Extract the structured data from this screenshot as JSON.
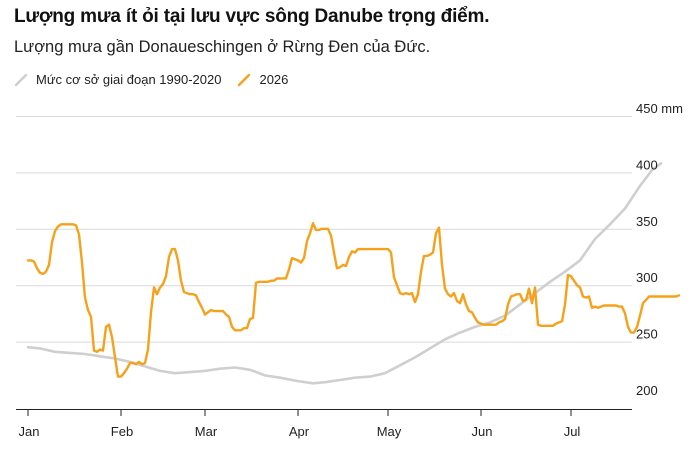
{
  "header": {
    "title": "Lượng mưa ít ỏi tại lưu vực sông Danube trọng điểm.",
    "subtitle": "Lượng mưa gần Donaueschingen ở Rừng Đen của Đức."
  },
  "colors": {
    "baseline": "#cfcfcf",
    "current": "#f7a11a",
    "grid": "#d9d9d9",
    "axis": "#222222"
  },
  "chart_data": {
    "type": "line",
    "title": "Lượng mưa ít ỏi tại lưu vực sông Danube trọng điểm.",
    "subtitle": "Lượng mưa gần Donaueschingen ở Rừng Đen của Đức.",
    "y_axis": {
      "position": "right",
      "ylim": [
        200,
        450
      ],
      "ticks": [
        200,
        250,
        300,
        350,
        400,
        450
      ],
      "tick_labels": [
        "200",
        "250",
        "300",
        "350",
        "400",
        "450 mm"
      ]
    },
    "x_axis": {
      "tick_labels": [
        "Jan",
        "Feb",
        "Mar",
        "Apr",
        "May",
        "Jun",
        "Jul"
      ],
      "tick_day": [
        1,
        32,
        60,
        91,
        121,
        152,
        182
      ],
      "xlim": [
        1,
        212
      ]
    },
    "grid": "horizontal",
    "legend_position": "top-left",
    "series": [
      {
        "name": "Mức cơ sở giai đoạn 1990-2020",
        "color": "#cfcfcf",
        "points": [
          [
            1,
            245
          ],
          [
            5,
            244
          ],
          [
            10,
            241
          ],
          [
            15,
            240
          ],
          [
            20,
            239
          ],
          [
            25,
            237
          ],
          [
            30,
            235
          ],
          [
            35,
            232
          ],
          [
            40,
            228
          ],
          [
            45,
            224
          ],
          [
            50,
            222
          ],
          [
            55,
            223
          ],
          [
            60,
            224
          ],
          [
            65,
            226
          ],
          [
            70,
            227
          ],
          [
            75,
            225
          ],
          [
            80,
            220
          ],
          [
            85,
            218
          ],
          [
            91,
            215
          ],
          [
            96,
            213
          ],
          [
            100,
            214
          ],
          [
            105,
            216
          ],
          [
            110,
            218
          ],
          [
            115,
            219
          ],
          [
            120,
            222
          ],
          [
            125,
            229
          ],
          [
            130,
            236
          ],
          [
            135,
            244
          ],
          [
            140,
            252
          ],
          [
            145,
            258
          ],
          [
            150,
            263
          ],
          [
            155,
            267
          ],
          [
            160,
            273
          ],
          [
            165,
            283
          ],
          [
            170,
            293
          ],
          [
            175,
            303
          ],
          [
            180,
            312
          ],
          [
            185,
            322
          ],
          [
            190,
            341
          ],
          [
            195,
            354
          ],
          [
            200,
            368
          ],
          [
            205,
            388
          ],
          [
            209,
            402
          ],
          [
            212,
            408
          ]
        ]
      },
      {
        "name": "2026",
        "color": "#f7a11a",
        "points": [
          [
            1,
            322
          ],
          [
            2,
            322
          ],
          [
            3,
            321
          ],
          [
            4,
            315
          ],
          [
            5,
            311
          ],
          [
            6,
            310
          ],
          [
            7,
            312
          ],
          [
            8,
            318
          ],
          [
            9,
            338
          ],
          [
            10,
            348
          ],
          [
            11,
            352
          ],
          [
            12,
            354
          ],
          [
            13,
            354
          ],
          [
            14,
            354
          ],
          [
            15,
            354
          ],
          [
            16,
            354
          ],
          [
            17,
            353
          ],
          [
            18,
            345
          ],
          [
            19,
            320
          ],
          [
            20,
            289
          ],
          [
            21,
            278
          ],
          [
            22,
            272
          ],
          [
            23,
            242
          ],
          [
            24,
            241
          ],
          [
            25,
            243
          ],
          [
            26,
            242
          ],
          [
            27,
            263
          ],
          [
            28,
            265
          ],
          [
            29,
            254
          ],
          [
            30,
            236
          ],
          [
            31,
            219
          ],
          [
            32,
            219
          ],
          [
            33,
            222
          ],
          [
            34,
            226
          ],
          [
            35,
            231
          ],
          [
            36,
            231
          ],
          [
            37,
            230
          ],
          [
            38,
            232
          ],
          [
            39,
            230
          ],
          [
            40,
            231
          ],
          [
            41,
            243
          ],
          [
            42,
            276
          ],
          [
            43,
            298
          ],
          [
            44,
            292
          ],
          [
            45,
            298
          ],
          [
            46,
            301
          ],
          [
            47,
            308
          ],
          [
            48,
            325
          ],
          [
            49,
            332
          ],
          [
            50,
            332
          ],
          [
            51,
            322
          ],
          [
            52,
            304
          ],
          [
            53,
            294
          ],
          [
            54,
            293
          ],
          [
            55,
            292
          ],
          [
            56,
            292
          ],
          [
            57,
            291
          ],
          [
            58,
            285
          ],
          [
            59,
            280
          ],
          [
            60,
            274
          ],
          [
            61,
            276
          ],
          [
            62,
            278
          ],
          [
            63,
            277
          ],
          [
            64,
            277
          ],
          [
            65,
            277
          ],
          [
            66,
            277
          ],
          [
            67,
            274
          ],
          [
            68,
            272
          ],
          [
            69,
            263
          ],
          [
            70,
            260
          ],
          [
            71,
            260
          ],
          [
            72,
            260
          ],
          [
            73,
            262
          ],
          [
            74,
            262
          ],
          [
            75,
            270
          ],
          [
            76,
            271
          ],
          [
            77,
            302
          ],
          [
            78,
            303
          ],
          [
            79,
            303
          ],
          [
            80,
            303
          ],
          [
            81,
            303
          ],
          [
            82,
            304
          ],
          [
            83,
            304
          ],
          [
            84,
            306
          ],
          [
            85,
            306
          ],
          [
            86,
            306
          ],
          [
            87,
            306
          ],
          [
            88,
            314
          ],
          [
            89,
            324
          ],
          [
            90,
            323
          ],
          [
            91,
            322
          ],
          [
            92,
            320
          ],
          [
            93,
            324
          ],
          [
            94,
            339
          ],
          [
            95,
            346
          ],
          [
            96,
            355
          ],
          [
            97,
            349
          ],
          [
            98,
            349
          ],
          [
            99,
            350
          ],
          [
            100,
            350
          ],
          [
            101,
            350
          ],
          [
            102,
            344
          ],
          [
            103,
            329
          ],
          [
            104,
            315
          ],
          [
            105,
            316
          ],
          [
            106,
            318
          ],
          [
            107,
            317
          ],
          [
            108,
            325
          ],
          [
            109,
            330
          ],
          [
            110,
            329
          ],
          [
            111,
            332
          ],
          [
            112,
            332
          ],
          [
            113,
            332
          ],
          [
            114,
            332
          ],
          [
            115,
            332
          ],
          [
            116,
            332
          ],
          [
            117,
            332
          ],
          [
            118,
            332
          ],
          [
            119,
            332
          ],
          [
            120,
            332
          ],
          [
            121,
            332
          ],
          [
            122,
            329
          ],
          [
            123,
            307
          ],
          [
            124,
            300
          ],
          [
            125,
            293
          ],
          [
            126,
            292
          ],
          [
            127,
            293
          ],
          [
            128,
            292
          ],
          [
            129,
            293
          ],
          [
            130,
            285
          ],
          [
            131,
            292
          ],
          [
            132,
            312
          ],
          [
            133,
            326
          ],
          [
            134,
            326
          ],
          [
            135,
            327
          ],
          [
            136,
            329
          ],
          [
            137,
            346
          ],
          [
            138,
            351
          ],
          [
            139,
            318
          ],
          [
            140,
            297
          ],
          [
            141,
            292
          ],
          [
            142,
            290
          ],
          [
            143,
            293
          ],
          [
            144,
            286
          ],
          [
            145,
            284
          ],
          [
            146,
            292
          ],
          [
            147,
            283
          ],
          [
            148,
            277
          ],
          [
            149,
            276
          ],
          [
            150,
            271
          ],
          [
            151,
            267
          ],
          [
            152,
            266
          ],
          [
            153,
            265
          ],
          [
            154,
            265
          ],
          [
            155,
            265
          ],
          [
            156,
            265
          ],
          [
            157,
            265
          ],
          [
            158,
            267
          ],
          [
            159,
            268
          ],
          [
            160,
            270
          ],
          [
            161,
            283
          ],
          [
            162,
            290
          ],
          [
            163,
            291
          ],
          [
            164,
            292
          ],
          [
            165,
            292
          ],
          [
            166,
            286
          ],
          [
            167,
            287
          ],
          [
            168,
            297
          ],
          [
            169,
            284
          ],
          [
            170,
            298
          ],
          [
            171,
            265
          ],
          [
            172,
            264
          ],
          [
            173,
            264
          ],
          [
            174,
            264
          ],
          [
            175,
            264
          ],
          [
            176,
            264
          ],
          [
            177,
            266
          ],
          [
            178,
            267
          ],
          [
            179,
            268
          ],
          [
            180,
            283
          ],
          [
            181,
            309
          ],
          [
            182,
            308
          ],
          [
            183,
            304
          ],
          [
            184,
            300
          ],
          [
            185,
            298
          ],
          [
            186,
            290
          ],
          [
            187,
            289
          ],
          [
            188,
            290
          ],
          [
            189,
            280
          ],
          [
            190,
            281
          ],
          [
            191,
            280
          ],
          [
            192,
            281
          ],
          [
            193,
            282
          ],
          [
            194,
            282
          ],
          [
            195,
            282
          ],
          [
            196,
            282
          ],
          [
            197,
            282
          ],
          [
            198,
            281
          ],
          [
            199,
            281
          ],
          [
            200,
            275
          ],
          [
            201,
            263
          ],
          [
            202,
            258
          ],
          [
            203,
            258
          ],
          [
            204,
            263
          ],
          [
            205,
            273
          ],
          [
            206,
            284
          ],
          [
            207,
            287
          ],
          [
            208,
            290
          ],
          [
            209,
            290
          ],
          [
            210,
            290
          ],
          [
            211,
            290
          ],
          [
            212,
            290
          ],
          [
            213,
            290
          ],
          [
            214,
            290
          ],
          [
            215,
            290
          ],
          [
            216,
            290
          ],
          [
            217,
            290
          ],
          [
            218,
            291
          ]
        ]
      }
    ]
  }
}
